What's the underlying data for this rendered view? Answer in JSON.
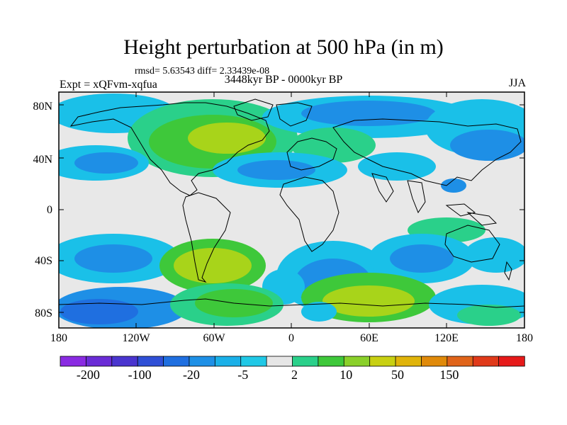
{
  "title": "Height perturbation at 500 hPa (in m)",
  "stats": "rmsd= 5.63543 diff= 2.33439e-08",
  "experiment": "Expt = xQFvm-xqfua",
  "period": "3448kyr BP - 0000kyr BP",
  "season": "JJA",
  "lat_labels": [
    "80N",
    "40N",
    "0",
    "40S",
    "80S"
  ],
  "lon_labels": [
    "180",
    "120W",
    "60W",
    "0",
    "60E",
    "120E",
    "180"
  ],
  "colorbar": {
    "colors": [
      "#8a2be2",
      "#6a2cd6",
      "#4a35cf",
      "#2f4fd6",
      "#1f6fe0",
      "#1e90e6",
      "#1ab0e8",
      "#20c8e6",
      "#e6e6e6",
      "#2ad08a",
      "#3ec83a",
      "#8ad02a",
      "#c8d012",
      "#e0b40a",
      "#e08a0a",
      "#e0641a",
      "#e03a1a",
      "#e61a1a"
    ],
    "labels": [
      "-200",
      "-100",
      "-20",
      "-5",
      "2",
      "10",
      "50",
      "150"
    ]
  },
  "field_colors": {
    "neutral": "#e8e8e8",
    "cyan": "#1ac0e8",
    "blue": "#1e8fe6",
    "darkblue": "#1f6fe0",
    "teal": "#2ad08a",
    "green": "#3ec83a",
    "yellowgreen": "#a8d41a"
  }
}
